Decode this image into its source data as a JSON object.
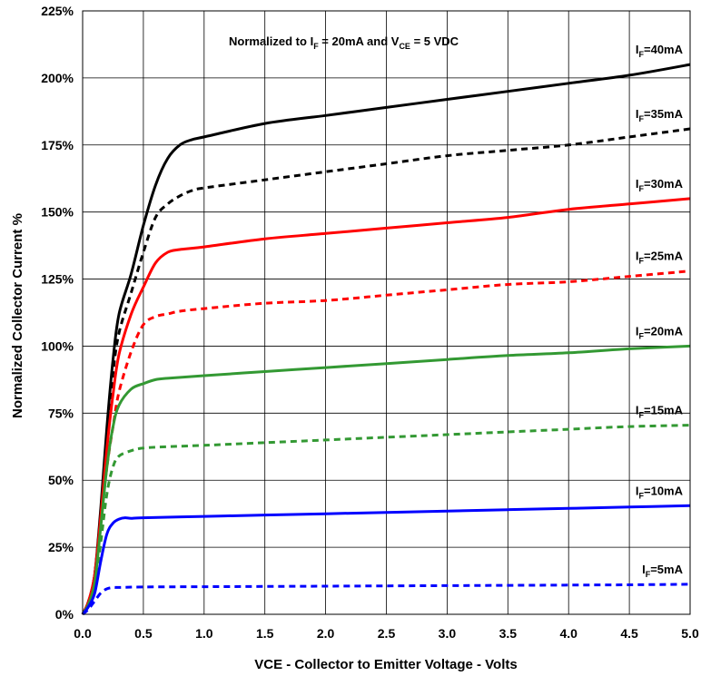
{
  "chart_data": {
    "type": "line",
    "title": "",
    "annotation": {
      "prefix": "Normalized to I",
      "sub1": "F",
      "mid": " = 20mA and V",
      "sub2": "CE",
      "suffix": " = 5 VDC"
    },
    "xlabel": "VCE - Collector to Emitter Voltage - Volts",
    "ylabel": "Normalized Collector Current %",
    "xlim": [
      0,
      5
    ],
    "ylim": [
      0,
      225
    ],
    "x_ticks": [
      "0.0",
      "0.5",
      "1.0",
      "1.5",
      "2.0",
      "2.5",
      "3.0",
      "3.5",
      "4.0",
      "4.5",
      "5.0"
    ],
    "y_ticks": [
      "0%",
      "25%",
      "50%",
      "75%",
      "100%",
      "125%",
      "150%",
      "175%",
      "200%",
      "225%"
    ],
    "grid": true,
    "series": [
      {
        "name": "IF=40mA",
        "label_main": "I",
        "label_sub": "F",
        "label_rest": "=40mA",
        "color": "#000000",
        "dash": false,
        "x": [
          0,
          0.05,
          0.1,
          0.15,
          0.2,
          0.25,
          0.3,
          0.4,
          0.5,
          0.6,
          0.7,
          0.8,
          0.9,
          1.0,
          1.5,
          2.0,
          2.5,
          3.0,
          3.5,
          4.0,
          4.5,
          5.0
        ],
        "y": [
          0,
          5,
          15,
          40,
          70,
          95,
          112,
          127,
          145,
          160,
          170,
          175,
          177,
          178,
          183,
          186,
          189,
          192,
          195,
          198,
          201,
          205
        ]
      },
      {
        "name": "IF=35mA",
        "label_main": "I",
        "label_sub": "F",
        "label_rest": "=35mA",
        "color": "#000000",
        "dash": true,
        "x": [
          0,
          0.05,
          0.1,
          0.15,
          0.2,
          0.25,
          0.3,
          0.4,
          0.5,
          0.6,
          0.7,
          0.8,
          0.9,
          1.0,
          1.5,
          2.0,
          2.5,
          3.0,
          3.5,
          4.0,
          4.5,
          5.0
        ],
        "y": [
          0,
          5,
          15,
          38,
          65,
          90,
          105,
          120,
          135,
          148,
          153,
          156,
          158,
          159,
          162,
          165,
          168,
          171,
          173,
          175,
          178,
          181
        ]
      },
      {
        "name": "IF=30mA",
        "label_main": "I",
        "label_sub": "F",
        "label_rest": "=30mA",
        "color": "#ff0000",
        "dash": false,
        "x": [
          0,
          0.05,
          0.1,
          0.15,
          0.2,
          0.25,
          0.3,
          0.4,
          0.5,
          0.6,
          0.7,
          0.8,
          1.0,
          1.5,
          2.0,
          2.5,
          3.0,
          3.5,
          4.0,
          4.5,
          5.0
        ],
        "y": [
          0,
          5,
          15,
          37,
          62,
          82,
          97,
          112,
          122,
          131,
          135,
          136,
          137,
          140,
          142,
          144,
          146,
          148,
          151,
          153,
          155
        ]
      },
      {
        "name": "IF=25mA",
        "label_main": "I",
        "label_sub": "F",
        "label_rest": "=25mA",
        "color": "#ff0000",
        "dash": true,
        "x": [
          0,
          0.05,
          0.1,
          0.15,
          0.2,
          0.25,
          0.3,
          0.4,
          0.5,
          0.6,
          0.7,
          0.8,
          1.0,
          1.5,
          2.0,
          2.5,
          3.0,
          3.5,
          4.0,
          4.5,
          5.0
        ],
        "y": [
          0,
          4,
          13,
          35,
          55,
          70,
          83,
          98,
          108,
          111,
          112,
          113,
          114,
          116,
          117,
          119,
          121,
          123,
          124,
          126,
          128
        ]
      },
      {
        "name": "IF=20mA",
        "label_main": "I",
        "label_sub": "F",
        "label_rest": "=20mA",
        "color": "#339933",
        "dash": false,
        "x": [
          0,
          0.05,
          0.1,
          0.15,
          0.2,
          0.25,
          0.3,
          0.4,
          0.5,
          0.6,
          0.7,
          1.0,
          1.5,
          2.0,
          2.5,
          3.0,
          3.5,
          4.0,
          4.5,
          5.0
        ],
        "y": [
          0,
          4,
          12,
          33,
          55,
          70,
          78,
          84,
          86,
          87.5,
          88,
          89,
          90.5,
          92,
          93.5,
          95,
          96.5,
          97.5,
          99,
          100
        ]
      },
      {
        "name": "IF=15mA",
        "label_main": "I",
        "label_sub": "F",
        "label_rest": "=15mA",
        "color": "#339933",
        "dash": true,
        "x": [
          0,
          0.05,
          0.1,
          0.15,
          0.2,
          0.25,
          0.3,
          0.4,
          0.5,
          0.7,
          1.0,
          1.5,
          2.0,
          2.5,
          3.0,
          3.5,
          4.0,
          4.5,
          5.0
        ],
        "y": [
          0,
          3,
          10,
          27,
          45,
          55,
          59,
          61,
          62,
          62.5,
          63,
          64,
          65,
          66,
          67,
          68,
          69,
          70,
          70.5
        ]
      },
      {
        "name": "IF=10mA",
        "label_main": "I",
        "label_sub": "F",
        "label_rest": "=10mA",
        "color": "#0000ff",
        "dash": false,
        "x": [
          0,
          0.05,
          0.1,
          0.15,
          0.2,
          0.25,
          0.3,
          0.35,
          0.4,
          0.5,
          1.0,
          1.5,
          2.0,
          2.5,
          3.0,
          3.5,
          4.0,
          4.5,
          5.0
        ],
        "y": [
          0,
          3,
          8,
          20,
          30,
          34,
          35.5,
          36,
          35.8,
          36,
          36.5,
          37,
          37.5,
          38,
          38.5,
          39,
          39.5,
          40,
          40.5
        ]
      },
      {
        "name": "IF=5mA",
        "label_main": "I",
        "label_sub": "F",
        "label_rest": "=5mA",
        "color": "#0000ff",
        "dash": true,
        "x": [
          0,
          0.05,
          0.1,
          0.15,
          0.2,
          0.25,
          0.3,
          0.5,
          1.0,
          1.5,
          2.0,
          2.5,
          3.0,
          3.5,
          4.0,
          4.5,
          5.0
        ],
        "y": [
          0,
          2,
          5,
          8,
          9.5,
          10,
          10,
          10.2,
          10.3,
          10.4,
          10.5,
          10.6,
          10.7,
          10.8,
          10.9,
          11,
          11.2
        ]
      }
    ]
  }
}
